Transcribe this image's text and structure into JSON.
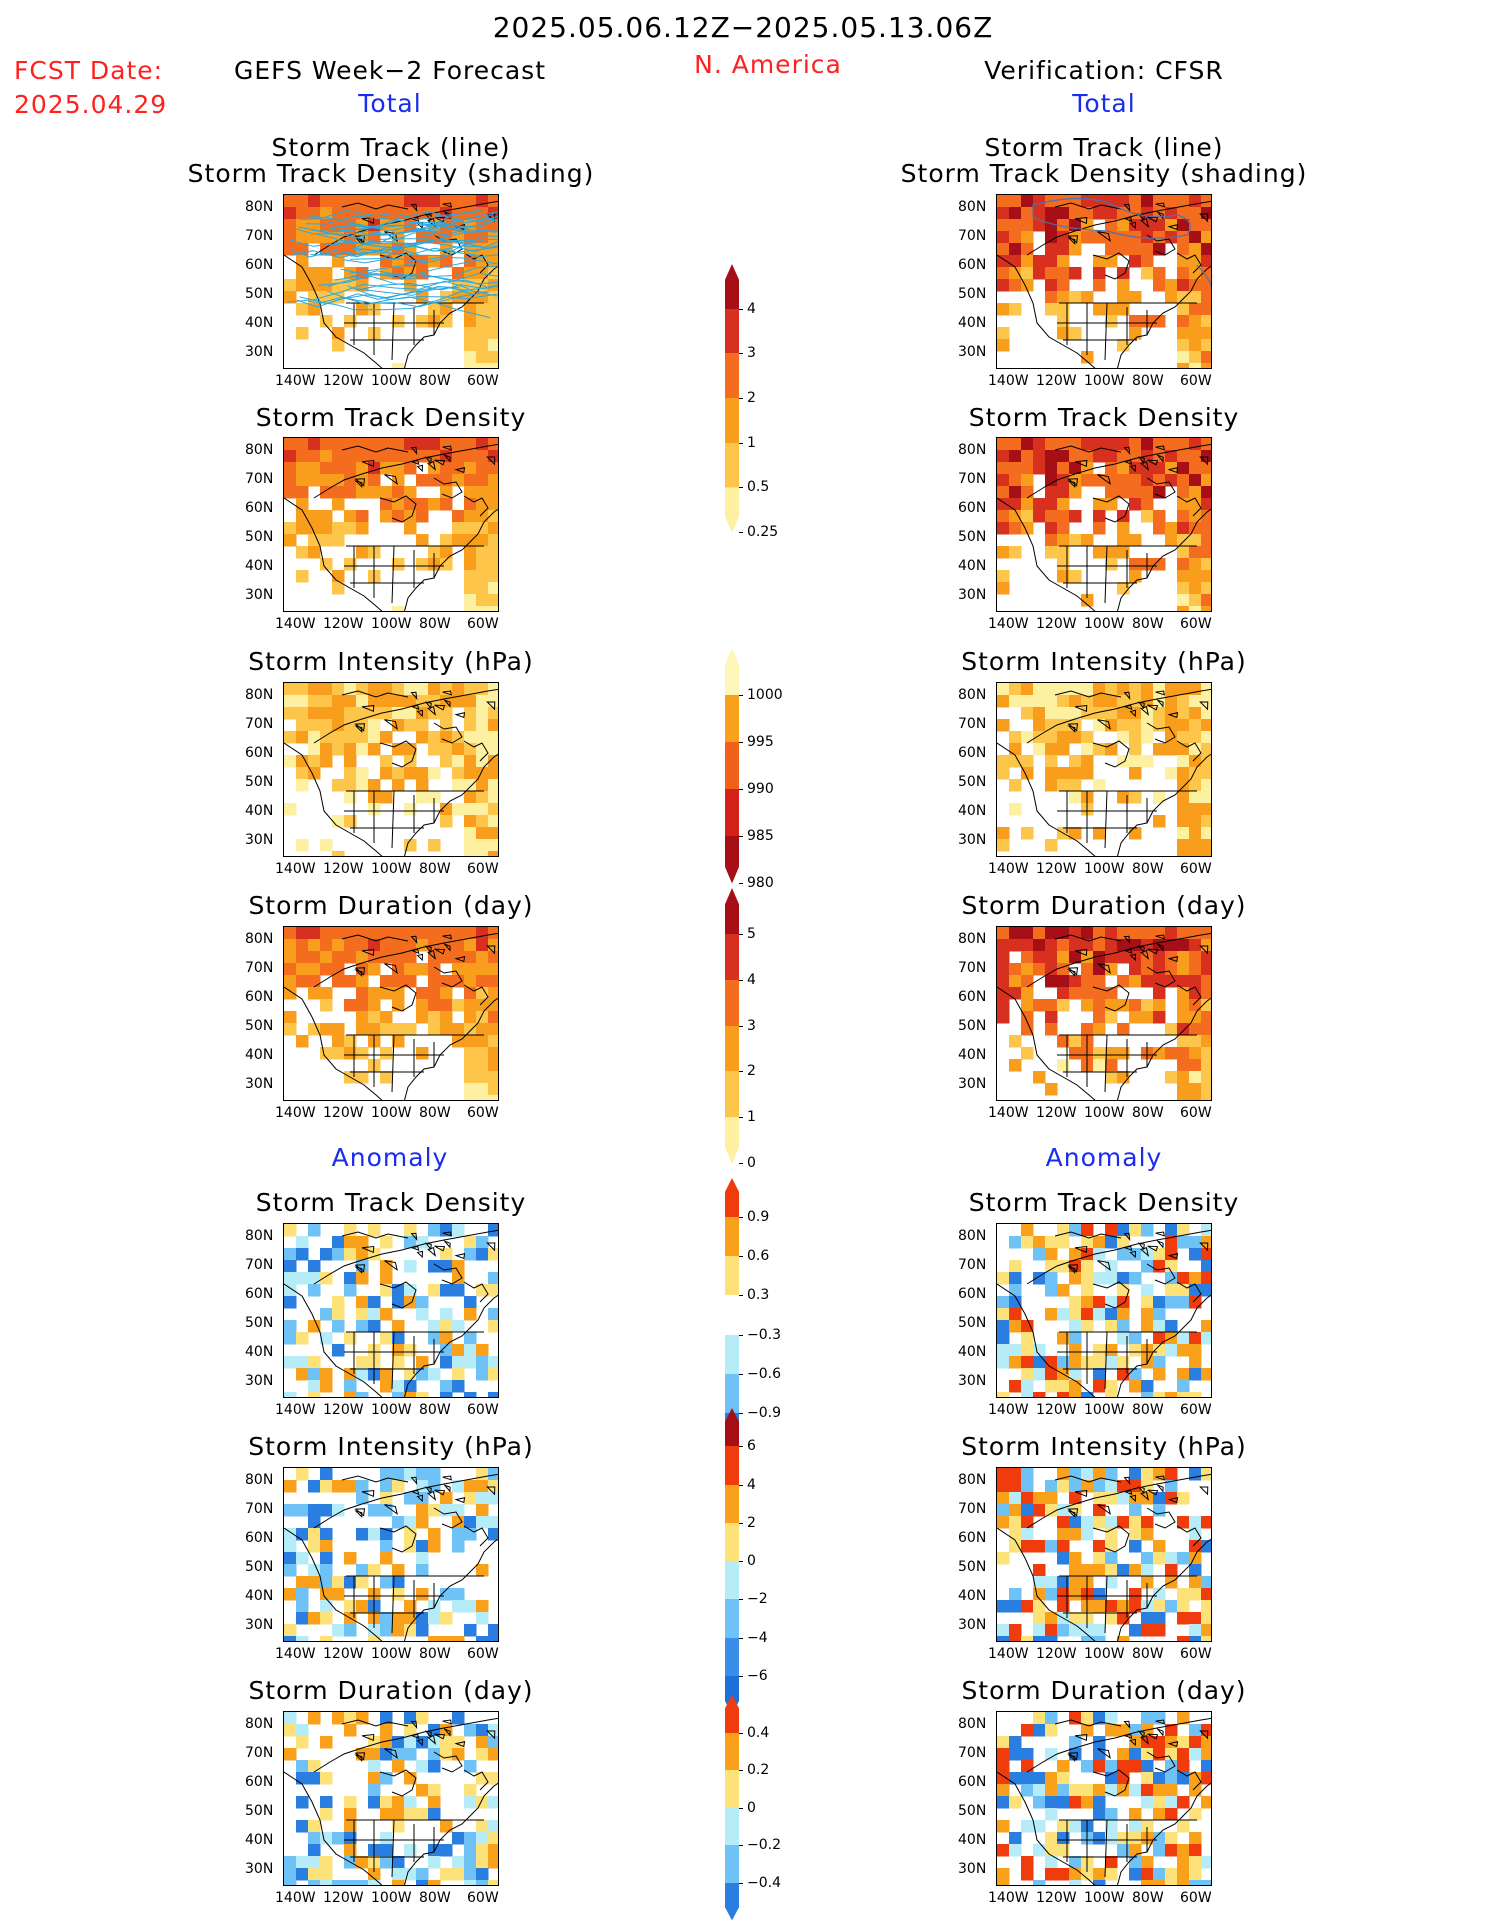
{
  "header": {
    "date_range": "2025.05.06.12Z−2025.05.13.06Z",
    "fcst_label": "FCST Date:",
    "fcst_date": "2025.04.29",
    "left_title": "GEFS Week−2 Forecast",
    "region": "N. America",
    "right_title": "Verification: CFSR",
    "left_section_total": "Total",
    "right_section_total": "Total",
    "left_section_anomaly": "Anomaly",
    "right_section_anomaly": "Anomaly"
  },
  "panels": {
    "p1_line1": "Storm Track (line)",
    "p1_line2": "Storm Track Density (shading)",
    "density": "Storm Track Density",
    "intensity": "Storm Intensity (hPa)",
    "duration": "Storm Duration (day)"
  },
  "axes": {
    "lat_labels": [
      "80N",
      "70N",
      "60N",
      "50N",
      "40N",
      "30N"
    ],
    "lon_labels": [
      "140W",
      "120W",
      "100W",
      "80W",
      "60W"
    ]
  },
  "colorbars": {
    "density_total": {
      "labels": [
        "4",
        "3",
        "2",
        "1",
        "0.5",
        "0.25"
      ],
      "colors": [
        "#a50f15",
        "#d7301f",
        "#f46d1e",
        "#f99d1c",
        "#fdc64a",
        "#fdf0a0"
      ]
    },
    "intensity_total": {
      "labels": [
        "1000",
        "995",
        "990",
        "985",
        "980"
      ],
      "colors": [
        "#fdf6b8",
        "#f9a11b",
        "#f06018",
        "#d4221a",
        "#a50f15"
      ]
    },
    "duration_total": {
      "labels": [
        "5",
        "4",
        "3",
        "2",
        "1",
        "0"
      ],
      "colors": [
        "#a50f15",
        "#d7301f",
        "#f46d1e",
        "#f99d1c",
        "#fdc64a",
        "#fdf0a0"
      ]
    },
    "density_anom": {
      "labels": [
        "0.9",
        "0.6",
        "0.3",
        "−0.3",
        "−0.6",
        "−0.9"
      ],
      "colors": [
        "#f03c0c",
        "#f9a11b",
        "#fde27a",
        "#ffffff",
        "#b5ecf8",
        "#6ec2f5",
        "#2a7ee0"
      ]
    },
    "intensity_anom": {
      "labels": [
        "6",
        "4",
        "2",
        "0",
        "−2",
        "−4",
        "−6"
      ],
      "colors": [
        "#a50f15",
        "#f03c0c",
        "#f9a11b",
        "#fde27a",
        "#b5ecf8",
        "#6ec2f5",
        "#3a8ee8",
        "#1f6fd8"
      ]
    },
    "duration_anom": {
      "labels": [
        "0.4",
        "0.2",
        "0",
        "−0.2",
        "−0.4"
      ],
      "colors": [
        "#f03c0c",
        "#f9a11b",
        "#fde27a",
        "#b5ecf8",
        "#6ec2f5",
        "#2a7ee0"
      ]
    }
  },
  "colors": {
    "title_red": "#ff2020",
    "section_blue": "#1a2cf0",
    "track_line": "#29a9e0"
  }
}
